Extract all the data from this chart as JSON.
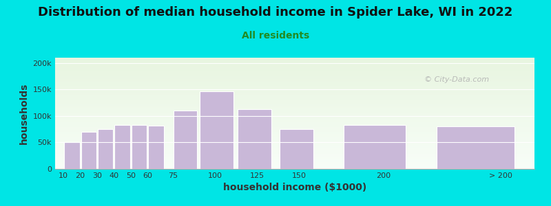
{
  "title": "Distribution of median household income in Spider Lake, WI in 2022",
  "subtitle": "All residents",
  "xlabel": "household income ($1000)",
  "ylabel": "households",
  "bar_labels": [
    "10",
    "20",
    "30",
    "40",
    "50",
    "60",
    "75",
    "100",
    "125",
    "150",
    "200",
    "> 200"
  ],
  "bar_lefts": [
    10,
    20,
    30,
    40,
    50,
    60,
    75,
    90,
    112.5,
    137.5,
    175,
    230
  ],
  "bar_widths": [
    10,
    10,
    10,
    10,
    10,
    10,
    15,
    22,
    22,
    22,
    40,
    50
  ],
  "bar_values": [
    50000,
    70000,
    75000,
    83000,
    83000,
    82000,
    110000,
    147000,
    113000,
    75000,
    83000,
    80000
  ],
  "bar_color": "#c9b8d8",
  "bar_edgecolor": "#ffffff",
  "background_color": "#00e5e5",
  "plot_bg_gradient_top": "#e8f5e0",
  "plot_bg_gradient_bottom": "#f8fef8",
  "ylim": [
    0,
    210000
  ],
  "yticks": [
    0,
    50000,
    100000,
    150000,
    200000
  ],
  "xlim": [
    5,
    290
  ],
  "xtick_positions": [
    10,
    20,
    30,
    40,
    50,
    60,
    75,
    100,
    125,
    150,
    200,
    270
  ],
  "xtick_labels": [
    "10",
    "20",
    "30",
    "40",
    "50",
    "60",
    "75",
    "100",
    "125",
    "150",
    "200",
    "> 200"
  ],
  "title_fontsize": 13,
  "subtitle_fontsize": 10,
  "subtitle_color": "#228B22",
  "axis_label_fontsize": 10,
  "tick_fontsize": 8,
  "watermark_text": "© City-Data.com",
  "watermark_color": "#b0b0b0"
}
